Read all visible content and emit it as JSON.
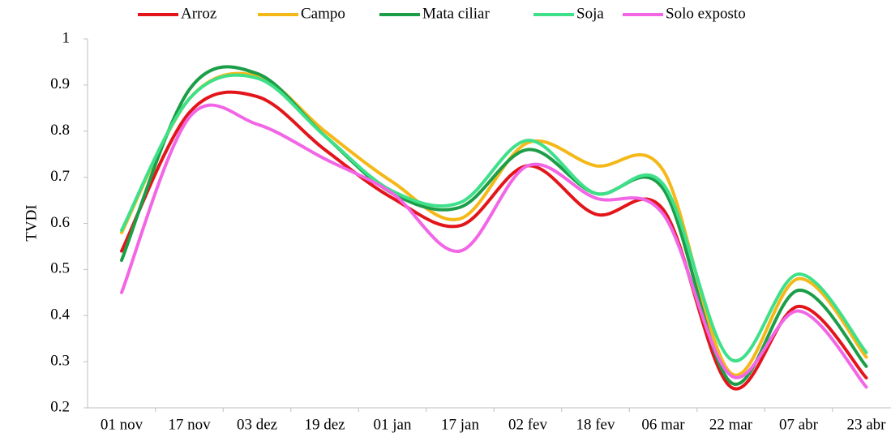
{
  "chart_data": {
    "type": "line",
    "y_label": "TVDI",
    "categories": [
      "01 nov",
      "17 nov",
      "03 dez",
      "19 dez",
      "01 jan",
      "17 jan",
      "02 fev",
      "18 fev",
      "06 mar",
      "22 mar",
      "07 abr",
      "23 abr"
    ],
    "series": [
      {
        "name": "Arroz",
        "color": "#e3151a",
        "values": [
          0.54,
          0.84,
          0.875,
          0.76,
          0.655,
          0.595,
          0.725,
          0.62,
          0.63,
          0.245,
          0.42,
          0.265
        ]
      },
      {
        "name": "Campo",
        "color": "#f5b819",
        "values": [
          0.58,
          0.87,
          0.92,
          0.8,
          0.69,
          0.61,
          0.775,
          0.725,
          0.715,
          0.275,
          0.48,
          0.31
        ]
      },
      {
        "name": "Mata ciliar",
        "color": "#1c9e48",
        "values": [
          0.52,
          0.89,
          0.925,
          0.79,
          0.665,
          0.635,
          0.76,
          0.665,
          0.675,
          0.255,
          0.455,
          0.29
        ]
      },
      {
        "name": "Soja",
        "color": "#3ee089",
        "values": [
          0.585,
          0.87,
          0.915,
          0.79,
          0.67,
          0.645,
          0.78,
          0.665,
          0.685,
          0.305,
          0.49,
          0.32
        ]
      },
      {
        "name": "Solo exposto",
        "color": "#f266e6",
        "values": [
          0.45,
          0.83,
          0.815,
          0.74,
          0.665,
          0.54,
          0.725,
          0.655,
          0.62,
          0.27,
          0.41,
          0.245
        ]
      }
    ],
    "ylim": [
      0.2,
      1
    ],
    "yticks": [
      0.2,
      0.3,
      0.4,
      0.5,
      0.6,
      0.7,
      0.8,
      0.9,
      1
    ],
    "grid": false,
    "legend": "top"
  }
}
